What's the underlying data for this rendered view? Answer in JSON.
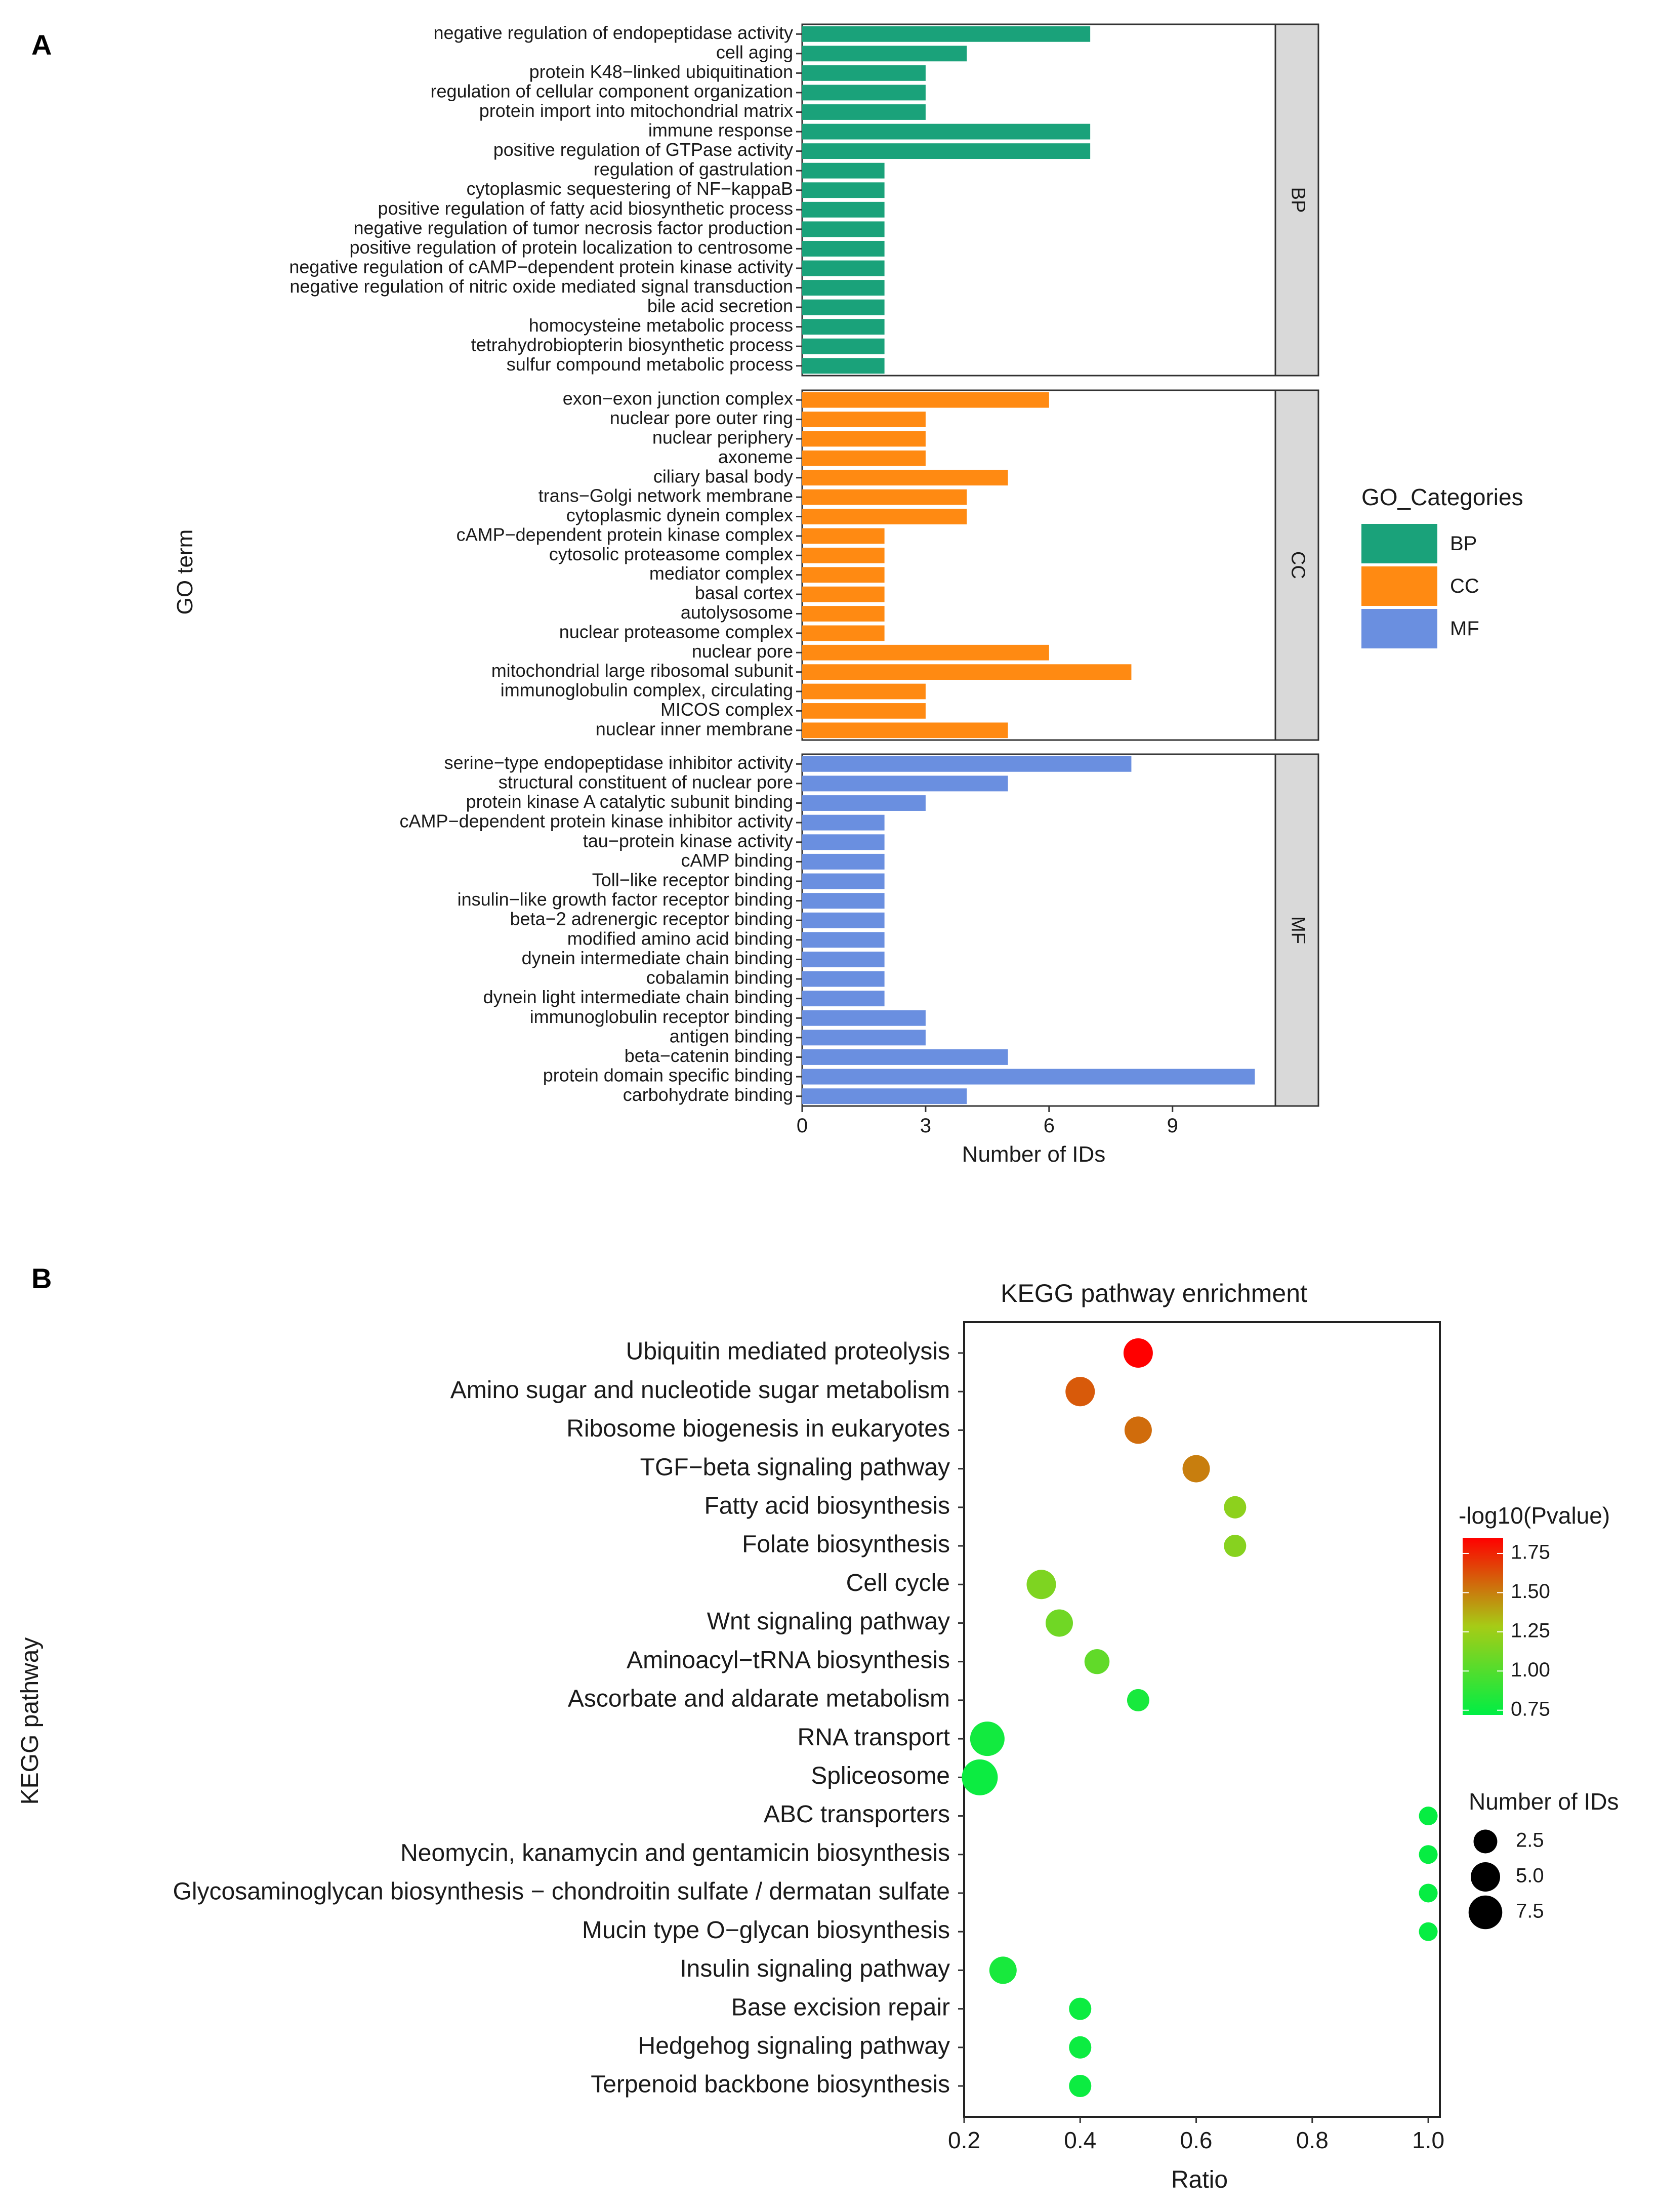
{
  "panels": {
    "a_label": "A",
    "b_label": "B"
  },
  "colors": {
    "BP": "#1aa27a",
    "CC": "#ff8a12",
    "MF": "#6a8fe0",
    "gradient_low": "#00ee44",
    "gradient_mid": "#a6cc16",
    "gradient_high": "#ff0000"
  },
  "chart_data": [
    {
      "type": "bar",
      "orientation": "horizontal",
      "title": "",
      "xlabel": "Number of IDs",
      "ylabel": "GO term",
      "xlim": [
        0,
        11.5
      ],
      "xticks": [
        "0",
        "3",
        "6",
        "9"
      ],
      "legend_title": "GO_Categories",
      "legend": [
        "BP",
        "CC",
        "MF"
      ],
      "legend_position": "right",
      "facets": [
        {
          "name": "BP",
          "categories": [
            "negative regulation of endopeptidase activity",
            "cell aging",
            "protein K48−linked ubiquitination",
            "regulation of cellular component organization",
            "protein import into mitochondrial matrix",
            "immune response",
            "positive regulation of GTPase activity",
            "regulation of gastrulation",
            "cytoplasmic sequestering of NF−kappaB",
            "positive regulation of fatty acid biosynthetic process",
            "negative regulation of tumor necrosis factor production",
            "positive regulation of protein localization to centrosome",
            "negative regulation of cAMP−dependent protein kinase activity",
            "negative regulation of nitric oxide mediated signal transduction",
            "bile acid secretion",
            "homocysteine metabolic process",
            "tetrahydrobiopterin biosynthetic process",
            "sulfur compound metabolic process"
          ],
          "values": [
            7,
            4,
            3,
            3,
            3,
            7,
            7,
            2,
            2,
            2,
            2,
            2,
            2,
            2,
            2,
            2,
            2,
            2
          ]
        },
        {
          "name": "CC",
          "categories": [
            "exon−exon junction complex",
            "nuclear pore outer ring",
            "nuclear periphery",
            "axoneme",
            "ciliary basal body",
            "trans−Golgi network membrane",
            "cytoplasmic dynein complex",
            "cAMP−dependent protein kinase complex",
            "cytosolic proteasome complex",
            "mediator complex",
            "basal cortex",
            "autolysosome",
            "nuclear proteasome complex",
            "nuclear pore",
            "mitochondrial large ribosomal subunit",
            "immunoglobulin complex, circulating",
            "MICOS complex",
            "nuclear inner membrane"
          ],
          "values": [
            6,
            3,
            3,
            3,
            5,
            4,
            4,
            2,
            2,
            2,
            2,
            2,
            2,
            6,
            8,
            3,
            3,
            5
          ]
        },
        {
          "name": "MF",
          "categories": [
            "serine−type endopeptidase inhibitor activity",
            "structural constituent of nuclear pore",
            "protein kinase A catalytic subunit binding",
            "cAMP−dependent protein kinase inhibitor activity",
            "tau−protein kinase activity",
            "cAMP binding",
            "Toll−like receptor binding",
            "insulin−like growth factor receptor binding",
            "beta−2 adrenergic receptor binding",
            "modified amino acid binding",
            "dynein intermediate chain binding",
            "cobalamin binding",
            "dynein light intermediate chain binding",
            "immunoglobulin receptor binding",
            "antigen binding",
            "beta−catenin binding",
            "protein domain specific binding",
            "carbohydrate binding"
          ],
          "values": [
            8,
            5,
            3,
            2,
            2,
            2,
            2,
            2,
            2,
            2,
            2,
            2,
            2,
            3,
            3,
            5,
            11,
            4
          ]
        }
      ]
    },
    {
      "type": "scatter",
      "title": "KEGG pathway enrichment",
      "xlabel": "Ratio",
      "ylabel": "KEGG pathway",
      "xlim": [
        0.2,
        1.02
      ],
      "xticks": [
        "0.2",
        "0.4",
        "0.6",
        "0.8",
        "1.0"
      ],
      "color_legend_title": "-log10(Pvalue)",
      "color_ticks": [
        "1.75",
        "1.50",
        "1.25",
        "1.00",
        "0.75"
      ],
      "color_range": [
        0.72,
        1.85
      ],
      "size_legend_title": "Number of IDs",
      "size_ticks": [
        "2.5",
        "5.0",
        "7.5"
      ],
      "legend_position": "right",
      "pathways": [
        "Ubiquitin mediated proteolysis",
        "Amino sugar and nucleotide sugar metabolism",
        "Ribosome biogenesis in eukaryotes",
        "TGF−beta signaling pathway",
        "Fatty acid biosynthesis",
        "Folate biosynthesis",
        "Cell cycle",
        "Wnt signaling pathway",
        "Aminoacyl−tRNA biosynthesis",
        "Ascorbate and aldarate metabolism",
        "RNA transport",
        "Spliceosome",
        "ABC transporters",
        "Neomycin, kanamycin and gentamicin biosynthesis",
        "Glycosaminoglycan biosynthesis − chondroitin sulfate / dermatan sulfate",
        "Mucin type O−glycan biosynthesis",
        "Insulin signaling pathway",
        "Base excision repair",
        "Hedgehog signaling pathway",
        "Terpenoid backbone biosynthesis"
      ],
      "ratio": [
        0.5,
        0.4,
        0.5,
        0.6,
        0.667,
        0.667,
        0.333,
        0.364,
        0.429,
        0.5,
        0.24,
        0.227,
        1.0,
        1.0,
        1.0,
        1.0,
        0.267,
        0.4,
        0.4,
        0.4
      ],
      "neglog10p": [
        1.85,
        1.6,
        1.55,
        1.5,
        1.2,
        1.18,
        1.15,
        1.1,
        1.05,
        0.8,
        0.78,
        0.76,
        0.74,
        0.74,
        0.74,
        0.74,
        0.8,
        0.76,
        0.76,
        0.76
      ],
      "count": [
        5,
        5,
        4,
        4,
        2,
        2,
        5,
        4,
        3,
        2,
        8,
        9,
        1,
        1,
        1,
        1,
        4,
        2,
        2,
        2
      ]
    }
  ]
}
